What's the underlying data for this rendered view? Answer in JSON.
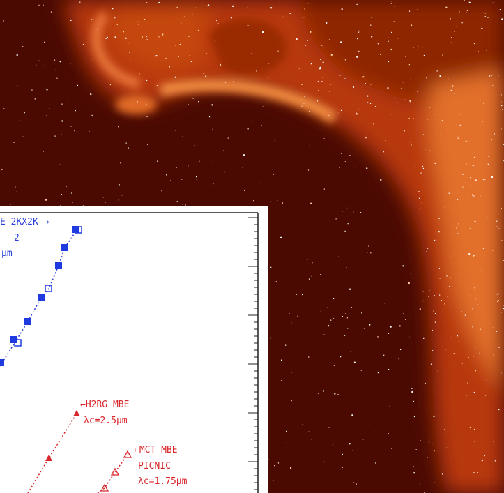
{
  "inset_chart": {
    "annotations": {
      "blue_label_1": "E 2KX2K →",
      "blue_label_2": "2",
      "blue_label_3": "μm",
      "h2rg_label": "←H2RG MBE",
      "h2rg_cutoff": "λc=2.5μm",
      "mct_label": "←MCT MBE",
      "mct_device": "PICNIC",
      "mct_cutoff": "λc=1.75μm"
    }
  }
}
